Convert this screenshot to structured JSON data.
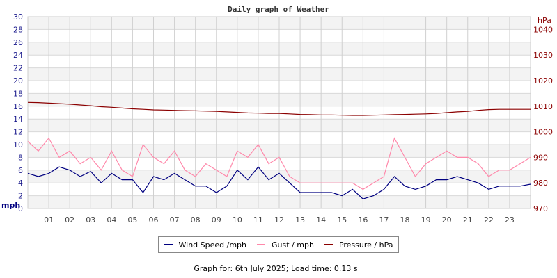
{
  "chart_data": {
    "type": "line",
    "title": "Daily graph of Weather",
    "ylabel_left": "mph",
    "ylabel_right": "hPa",
    "ylim_left": [
      0,
      30
    ],
    "yticks_left": [
      0,
      2,
      4,
      6,
      8,
      10,
      12,
      14,
      16,
      18,
      20,
      22,
      24,
      26,
      28,
      30
    ],
    "ylim_right": [
      970,
      1045
    ],
    "yticks_right": [
      970,
      980,
      990,
      1000,
      1010,
      1020,
      1030,
      1040
    ],
    "xlim_hours": [
      0,
      24
    ],
    "xtick_labels": [
      "01",
      "02",
      "03",
      "04",
      "05",
      "06",
      "07",
      "08",
      "09",
      "10",
      "11",
      "12",
      "13",
      "14",
      "15",
      "16",
      "17",
      "18",
      "19",
      "20",
      "21",
      "22",
      "23"
    ],
    "grid": true,
    "legend_position": "bottom",
    "x_hours": [
      0,
      0.5,
      1,
      1.5,
      2,
      2.5,
      3,
      3.5,
      4,
      4.5,
      5,
      5.5,
      6,
      6.5,
      7,
      7.5,
      8,
      8.5,
      9,
      9.5,
      10,
      10.5,
      11,
      11.5,
      12,
      12.5,
      13,
      13.5,
      14,
      14.5,
      15,
      15.5,
      16,
      16.5,
      17,
      17.5,
      18,
      18.5,
      19,
      19.5,
      20,
      20.5,
      21,
      21.5,
      22,
      22.5,
      23,
      23.5,
      24
    ],
    "series": [
      {
        "name": "Wind Speed /mph",
        "axis": "left",
        "color": "#000080",
        "values": [
          5.5,
          5,
          5.5,
          6.5,
          6,
          5,
          5.8,
          4,
          5.5,
          4.5,
          4.5,
          2.5,
          5,
          4.5,
          5.5,
          4.5,
          3.5,
          3.5,
          2.5,
          3.5,
          6,
          4.5,
          6.5,
          4.5,
          5.5,
          4,
          2.5,
          2.5,
          2.5,
          2.5,
          2,
          3,
          1.5,
          2,
          3,
          5,
          3.5,
          3,
          3.5,
          4.5,
          4.5,
          5,
          4.5,
          4,
          3,
          3.5,
          3.5,
          3.5,
          3.8
        ]
      },
      {
        "name": "Gust / mph",
        "axis": "left",
        "color": "#ff88aa",
        "values": [
          10.5,
          9,
          11,
          8,
          9,
          7,
          8,
          6,
          9,
          6,
          5,
          10,
          8,
          7,
          9,
          6,
          5,
          7,
          6,
          5,
          9,
          8,
          10,
          7,
          8,
          5,
          4,
          4,
          4,
          4,
          4,
          4,
          3,
          4,
          5,
          11,
          8,
          5,
          7,
          8,
          9,
          8,
          8,
          7,
          5,
          6,
          6,
          7,
          8
        ]
      },
      {
        "name": "Pressure / hPa",
        "axis": "right",
        "color": "#8b0000",
        "values": [
          1011.5,
          1011.4,
          1011.2,
          1011,
          1010.8,
          1010.5,
          1010.2,
          1009.8,
          1009.6,
          1009.3,
          1009,
          1008.8,
          1008.6,
          1008.5,
          1008.4,
          1008.3,
          1008.2,
          1008.1,
          1008,
          1007.8,
          1007.6,
          1007.4,
          1007.3,
          1007.2,
          1007.2,
          1007,
          1006.8,
          1006.7,
          1006.6,
          1006.6,
          1006.5,
          1006.4,
          1006.4,
          1006.5,
          1006.6,
          1006.7,
          1006.8,
          1006.9,
          1007,
          1007.2,
          1007.5,
          1007.8,
          1008,
          1008.4,
          1008.7,
          1008.8,
          1008.8,
          1008.8,
          1008.8
        ]
      }
    ]
  },
  "legend": [
    "Wind Speed /mph",
    "Gust / mph",
    "Pressure / hPa"
  ],
  "footer": "Graph for: 6th July 2025; Load time: 0.13 s"
}
